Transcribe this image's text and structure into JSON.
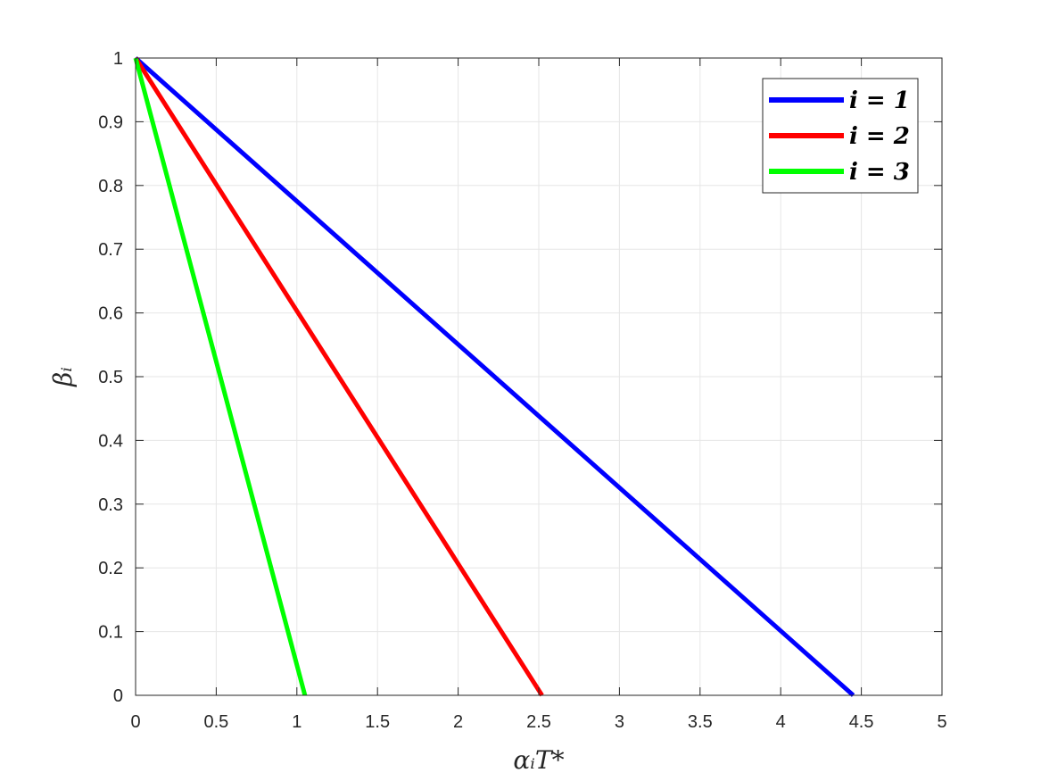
{
  "chart_data": {
    "type": "line",
    "title": "",
    "xlabel": "αᵢT*",
    "ylabel": "βᵢ",
    "xlim": [
      0,
      5
    ],
    "ylim": [
      0,
      1
    ],
    "xticks": [
      "0",
      "0.5",
      "1",
      "1.5",
      "2",
      "2.5",
      "3",
      "3.5",
      "4",
      "4.5",
      "5"
    ],
    "yticks": [
      "0",
      "0.1",
      "0.2",
      "0.3",
      "0.4",
      "0.5",
      "0.6",
      "0.7",
      "0.8",
      "0.9",
      "1"
    ],
    "grid": true,
    "legend_position": "top-right",
    "series": [
      {
        "name": "i = 1",
        "color": "#0000ff",
        "x": [
          0,
          4.45
        ],
        "y": [
          1,
          0
        ]
      },
      {
        "name": "i = 2",
        "color": "#ff0000",
        "x": [
          0,
          2.52
        ],
        "y": [
          1,
          0
        ]
      },
      {
        "name": "i = 3",
        "color": "#00ff00",
        "x": [
          0,
          1.05
        ],
        "y": [
          1,
          0
        ]
      }
    ]
  }
}
